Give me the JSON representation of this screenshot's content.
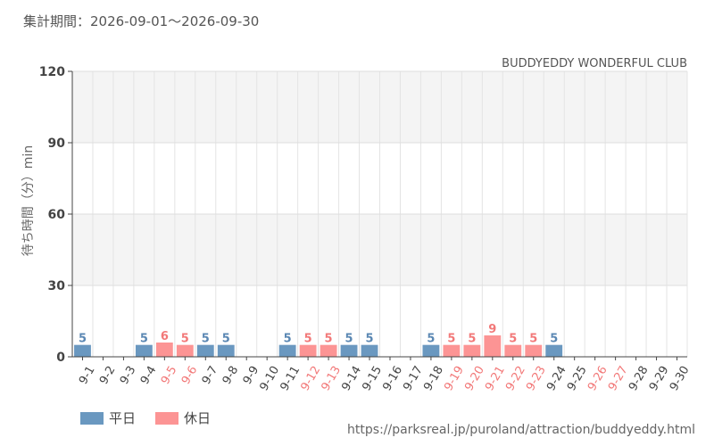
{
  "header": {
    "period": "集計期間：2026-09-01～2026-09-30"
  },
  "chart_data": {
    "type": "bar",
    "title": "BUDDYEDDY WONDERFUL CLUB",
    "ylabel": "待ち時間（分）min",
    "xlabel": "",
    "ylim": [
      0,
      120
    ],
    "yticks": [
      0,
      30,
      60,
      90,
      120
    ],
    "grid": true,
    "legend_position": "bottom-left",
    "categories": [
      "9-1",
      "9-2",
      "9-3",
      "9-4",
      "9-5",
      "9-6",
      "9-7",
      "9-8",
      "9-9",
      "9-10",
      "9-11",
      "9-12",
      "9-13",
      "9-14",
      "9-15",
      "9-16",
      "9-17",
      "9-18",
      "9-19",
      "9-20",
      "9-21",
      "9-22",
      "9-23",
      "9-24",
      "9-25",
      "9-26",
      "9-27",
      "9-28",
      "9-29",
      "9-30"
    ],
    "day_types": [
      "weekday",
      "weekday",
      "weekday",
      "weekday",
      "holiday",
      "holiday",
      "weekday",
      "weekday",
      "weekday",
      "weekday",
      "weekday",
      "holiday",
      "holiday",
      "weekday",
      "weekday",
      "weekday",
      "weekday",
      "weekday",
      "holiday",
      "holiday",
      "holiday",
      "holiday",
      "holiday",
      "weekday",
      "weekday",
      "holiday",
      "holiday",
      "weekday",
      "weekday",
      "weekday"
    ],
    "values": [
      5,
      null,
      null,
      5,
      6,
      5,
      5,
      5,
      null,
      null,
      5,
      5,
      5,
      5,
      5,
      null,
      null,
      5,
      5,
      5,
      9,
      5,
      5,
      5,
      null,
      null,
      null,
      null,
      null,
      null
    ],
    "series": [
      {
        "name": "平日",
        "color": "#6a98c0"
      },
      {
        "name": "休日",
        "color": "#fc9494"
      }
    ]
  },
  "colors": {
    "weekday_bar": "#6a98c0",
    "holiday_bar": "#fc9494",
    "weekday_label": "#5a87b3",
    "holiday_label": "#f27878",
    "tick_weekday": "#444444",
    "tick_holiday": "#f27878"
  },
  "footer": {
    "source_url": "https://parksreal.jp/puroland/attraction/buddyeddy.html"
  }
}
